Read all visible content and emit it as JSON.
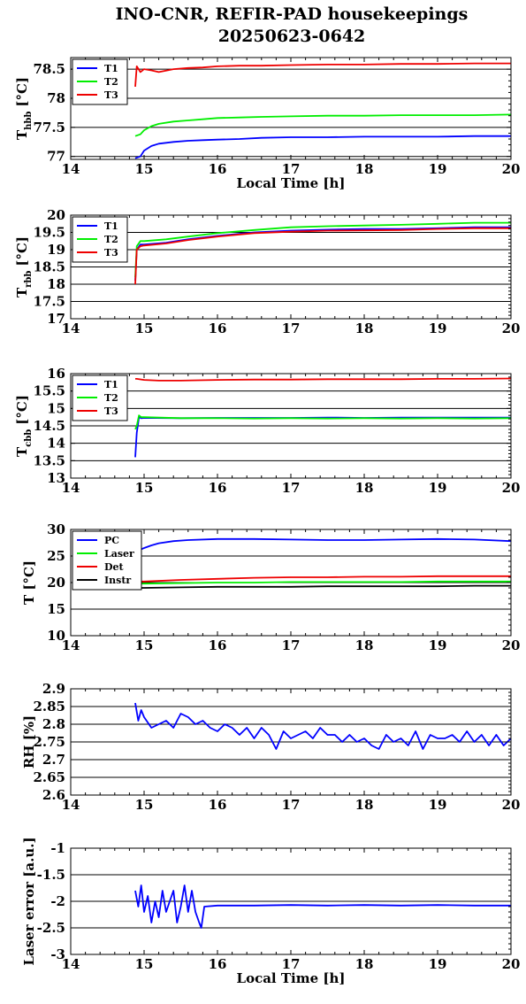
{
  "figure": {
    "title_line1": "INO-CNR, REFIR-PAD housekeepings",
    "title_line2": "20250623-0642"
  },
  "colors": {
    "blue": "#0000ff",
    "green": "#00ee00",
    "red": "#ee0000",
    "black": "#000000"
  },
  "chart_data": [
    {
      "type": "line",
      "ylabel_main": "T",
      "ylabel_sub": "hbb",
      "ylabel_unit": "[°C]",
      "xlabel": "Local Time [h]",
      "xlim": [
        14,
        20
      ],
      "ylim": [
        76.95,
        78.7
      ],
      "yticks": [
        77,
        77.5,
        78,
        78.5
      ],
      "ytick_labels": [
        "77",
        "77.5",
        "78",
        "78.5"
      ],
      "xticks": [
        14,
        15,
        16,
        17,
        18,
        19,
        20
      ],
      "xtick_labels": [
        "14",
        "15",
        "16",
        "17",
        "18",
        "19",
        "20"
      ],
      "grid": "horizontal",
      "legend_position": "top-left",
      "series": [
        {
          "name": "T1",
          "color": "#0000ff",
          "x": [
            14.88,
            14.95,
            15.0,
            15.1,
            15.2,
            15.4,
            15.6,
            15.8,
            16.0,
            16.3,
            16.6,
            17.0,
            17.5,
            18.0,
            18.5,
            19.0,
            19.5,
            20.0
          ],
          "y": [
            76.97,
            77.0,
            77.1,
            77.18,
            77.22,
            77.25,
            77.27,
            77.28,
            77.29,
            77.3,
            77.32,
            77.33,
            77.33,
            77.34,
            77.34,
            77.34,
            77.35,
            77.35
          ]
        },
        {
          "name": "T2",
          "color": "#00ee00",
          "x": [
            14.88,
            14.95,
            15.0,
            15.1,
            15.2,
            15.4,
            15.6,
            15.8,
            16.0,
            16.3,
            16.6,
            17.0,
            17.5,
            18.0,
            18.5,
            19.0,
            19.5,
            20.0
          ],
          "y": [
            77.35,
            77.38,
            77.45,
            77.52,
            77.56,
            77.6,
            77.62,
            77.64,
            77.66,
            77.67,
            77.68,
            77.69,
            77.7,
            77.7,
            77.71,
            77.71,
            77.71,
            77.72
          ]
        },
        {
          "name": "T3",
          "color": "#ee0000",
          "x": [
            14.88,
            14.9,
            14.95,
            15.0,
            15.1,
            15.2,
            15.4,
            15.6,
            15.8,
            16.0,
            16.3,
            16.6,
            17.0,
            17.5,
            18.0,
            18.5,
            19.0,
            19.5,
            20.0
          ],
          "y": [
            78.2,
            78.55,
            78.45,
            78.5,
            78.48,
            78.45,
            78.5,
            78.52,
            78.53,
            78.55,
            78.56,
            78.56,
            78.57,
            78.58,
            78.58,
            78.59,
            78.59,
            78.6,
            78.6
          ]
        }
      ]
    },
    {
      "type": "line",
      "ylabel_main": "T",
      "ylabel_sub": "rbb",
      "ylabel_unit": "[°C]",
      "xlim": [
        14,
        20
      ],
      "ylim": [
        17,
        20
      ],
      "yticks": [
        17,
        17.5,
        18,
        18.5,
        19,
        19.5,
        20
      ],
      "ytick_labels": [
        "17",
        "17.5",
        "18",
        "18.5",
        "19",
        "19.5",
        "20"
      ],
      "xticks": [
        14,
        15,
        16,
        17,
        18,
        19,
        20
      ],
      "xtick_labels": [
        "14",
        "15",
        "16",
        "17",
        "18",
        "19",
        "20"
      ],
      "grid": "horizontal",
      "legend_position": "top-left",
      "series": [
        {
          "name": "T1",
          "color": "#0000ff",
          "x": [
            14.88,
            14.9,
            14.95,
            15.0,
            15.3,
            15.6,
            16.0,
            16.5,
            17.0,
            17.5,
            18.0,
            18.5,
            19.0,
            19.5,
            20.0
          ],
          "y": [
            18.1,
            19.0,
            19.15,
            19.15,
            19.2,
            19.3,
            19.4,
            19.5,
            19.55,
            19.58,
            19.6,
            19.6,
            19.62,
            19.65,
            19.65
          ]
        },
        {
          "name": "T2",
          "color": "#00ee00",
          "x": [
            14.88,
            14.9,
            14.95,
            15.0,
            15.3,
            15.6,
            16.0,
            16.5,
            17.0,
            17.5,
            18.0,
            18.5,
            19.0,
            19.5,
            20.0
          ],
          "y": [
            18.2,
            19.1,
            19.25,
            19.25,
            19.3,
            19.38,
            19.48,
            19.57,
            19.65,
            19.68,
            19.7,
            19.72,
            19.75,
            19.78,
            19.78
          ]
        },
        {
          "name": "T3",
          "color": "#ee0000",
          "x": [
            14.88,
            14.9,
            14.95,
            15.0,
            15.3,
            15.6,
            16.0,
            16.5,
            17.0,
            17.5,
            18.0,
            18.5,
            19.0,
            19.5,
            20.0
          ],
          "y": [
            18.0,
            19.0,
            19.1,
            19.12,
            19.18,
            19.28,
            19.38,
            19.48,
            19.52,
            19.55,
            19.56,
            19.57,
            19.6,
            19.62,
            19.62
          ]
        }
      ]
    },
    {
      "type": "line",
      "ylabel_main": "T",
      "ylabel_sub": "cbb",
      "ylabel_unit": "[°C]",
      "xlim": [
        14,
        20
      ],
      "ylim": [
        13,
        16
      ],
      "yticks": [
        13,
        13.5,
        14,
        14.5,
        15,
        15.5,
        16
      ],
      "ytick_labels": [
        "13",
        "13.5",
        "14",
        "14.5",
        "15",
        "15.5",
        "16"
      ],
      "xticks": [
        14,
        15,
        16,
        17,
        18,
        19,
        20
      ],
      "xtick_labels": [
        "14",
        "15",
        "16",
        "17",
        "18",
        "19",
        "20"
      ],
      "grid": "horizontal",
      "legend_position": "top-left",
      "series": [
        {
          "name": "T1",
          "color": "#0000ff",
          "x": [
            14.88,
            14.9,
            14.93,
            14.96,
            15.0,
            15.5,
            16.0,
            16.5,
            17.0,
            17.5,
            18.0,
            18.5,
            19.0,
            19.5,
            20.0
          ],
          "y": [
            13.6,
            14.3,
            14.75,
            14.72,
            14.73,
            14.72,
            14.73,
            14.73,
            14.73,
            14.74,
            14.73,
            14.74,
            14.74,
            14.74,
            14.74
          ]
        },
        {
          "name": "T2",
          "color": "#00ee00",
          "x": [
            14.88,
            14.9,
            14.93,
            14.96,
            15.0,
            15.5,
            16.0,
            16.5,
            17.0,
            17.5,
            18.0,
            18.5,
            19.0,
            19.5,
            20.0
          ],
          "y": [
            14.4,
            14.5,
            14.8,
            14.75,
            14.75,
            14.72,
            14.72,
            14.71,
            14.72,
            14.71,
            14.72,
            14.71,
            14.72,
            14.71,
            14.72
          ]
        },
        {
          "name": "T3",
          "color": "#ee0000",
          "x": [
            14.88,
            14.9,
            15.0,
            15.2,
            15.5,
            16.0,
            16.5,
            17.0,
            17.5,
            18.0,
            18.5,
            19.0,
            19.5,
            20.0
          ],
          "y": [
            15.85,
            15.85,
            15.82,
            15.8,
            15.8,
            15.82,
            15.83,
            15.83,
            15.84,
            15.84,
            15.84,
            15.85,
            15.85,
            15.86
          ]
        }
      ]
    },
    {
      "type": "line",
      "ylabel_main": "T [°C]",
      "xlim": [
        14,
        20
      ],
      "ylim": [
        10,
        30
      ],
      "yticks": [
        10,
        15,
        20,
        25,
        30
      ],
      "ytick_labels": [
        "10",
        "15",
        "20",
        "25",
        "30"
      ],
      "xticks": [
        14,
        15,
        16,
        17,
        18,
        19,
        20
      ],
      "xtick_labels": [
        "14",
        "15",
        "16",
        "17",
        "18",
        "19",
        "20"
      ],
      "grid": "horizontal",
      "legend_position": "top-left",
      "series": [
        {
          "name": "PC",
          "color": "#0000ff",
          "x": [
            14.88,
            15.0,
            15.1,
            15.2,
            15.4,
            15.6,
            16.0,
            16.5,
            17.0,
            17.5,
            18.0,
            18.5,
            19.0,
            19.5,
            20.0
          ],
          "y": [
            25.8,
            26.5,
            27.0,
            27.4,
            27.8,
            28.0,
            28.2,
            28.2,
            28.1,
            28.0,
            28.0,
            28.1,
            28.2,
            28.1,
            27.8
          ]
        },
        {
          "name": "Laser",
          "color": "#00ee00",
          "x": [
            14.88,
            15.0,
            15.5,
            16.0,
            16.5,
            17.0,
            17.5,
            18.0,
            18.5,
            19.0,
            19.5,
            20.0
          ],
          "y": [
            19.8,
            19.8,
            19.9,
            20.0,
            20.0,
            20.1,
            20.1,
            20.1,
            20.1,
            20.2,
            20.2,
            20.2
          ]
        },
        {
          "name": "Det",
          "color": "#ee0000",
          "x": [
            14.88,
            15.0,
            15.5,
            16.0,
            16.5,
            17.0,
            17.5,
            18.0,
            18.5,
            19.0,
            19.5,
            20.0
          ],
          "y": [
            20.2,
            20.2,
            20.5,
            20.7,
            20.9,
            21.0,
            21.0,
            21.1,
            21.1,
            21.2,
            21.2,
            21.2
          ]
        },
        {
          "name": "Instr",
          "color": "#000000",
          "x": [
            14.88,
            15.0,
            15.5,
            16.0,
            16.5,
            17.0,
            17.5,
            18.0,
            18.5,
            19.0,
            19.5,
            20.0
          ],
          "y": [
            19.0,
            19.0,
            19.1,
            19.2,
            19.2,
            19.2,
            19.3,
            19.3,
            19.3,
            19.3,
            19.4,
            19.4
          ]
        }
      ]
    },
    {
      "type": "line",
      "ylabel_main": "RH [%]",
      "xlim": [
        14,
        20
      ],
      "ylim": [
        2.6,
        2.9
      ],
      "yticks": [
        2.6,
        2.65,
        2.7,
        2.75,
        2.8,
        2.85,
        2.9
      ],
      "ytick_labels": [
        "2.6",
        "2.65",
        "2.7",
        "2.75",
        "2.8",
        "2.85",
        "2.9"
      ],
      "xticks": [
        14,
        15,
        16,
        17,
        18,
        19,
        20
      ],
      "xtick_labels": [
        "14",
        "15",
        "16",
        "17",
        "18",
        "19",
        "20"
      ],
      "grid": "horizontal",
      "series": [
        {
          "name": "",
          "color": "#0000ff",
          "x": [
            14.88,
            14.92,
            14.96,
            15.0,
            15.1,
            15.2,
            15.3,
            15.4,
            15.5,
            15.6,
            15.7,
            15.8,
            15.9,
            16.0,
            16.1,
            16.2,
            16.3,
            16.4,
            16.5,
            16.6,
            16.7,
            16.8,
            16.9,
            17.0,
            17.1,
            17.2,
            17.3,
            17.4,
            17.5,
            17.6,
            17.7,
            17.8,
            17.9,
            18.0,
            18.1,
            18.2,
            18.3,
            18.4,
            18.5,
            18.6,
            18.7,
            18.8,
            18.9,
            19.0,
            19.1,
            19.2,
            19.3,
            19.4,
            19.5,
            19.6,
            19.7,
            19.8,
            19.9,
            20.0
          ],
          "y": [
            2.86,
            2.81,
            2.84,
            2.82,
            2.79,
            2.8,
            2.81,
            2.79,
            2.83,
            2.82,
            2.8,
            2.81,
            2.79,
            2.78,
            2.8,
            2.79,
            2.77,
            2.79,
            2.76,
            2.79,
            2.77,
            2.73,
            2.78,
            2.76,
            2.77,
            2.78,
            2.76,
            2.79,
            2.77,
            2.77,
            2.75,
            2.77,
            2.75,
            2.76,
            2.74,
            2.73,
            2.77,
            2.75,
            2.76,
            2.74,
            2.78,
            2.73,
            2.77,
            2.76,
            2.76,
            2.77,
            2.75,
            2.78,
            2.75,
            2.77,
            2.74,
            2.77,
            2.74,
            2.76
          ]
        }
      ]
    },
    {
      "type": "line",
      "ylabel_main": "Laser error [a.u.]",
      "xlabel": "Local Time [h]",
      "xlim": [
        14,
        20
      ],
      "ylim": [
        -3,
        -1
      ],
      "yticks": [
        -3,
        -2.5,
        -2,
        -1.5,
        -1
      ],
      "ytick_labels": [
        "-3",
        "-2.5",
        "-2",
        "-1.5",
        "-1"
      ],
      "xticks": [
        14,
        15,
        16,
        17,
        18,
        19,
        20
      ],
      "xtick_labels": [
        "14",
        "15",
        "16",
        "17",
        "18",
        "19",
        "20"
      ],
      "grid": "horizontal",
      "series": [
        {
          "name": "",
          "color": "#0000ff",
          "x": [
            14.88,
            14.92,
            14.96,
            15.0,
            15.05,
            15.1,
            15.15,
            15.2,
            15.25,
            15.3,
            15.35,
            15.4,
            15.45,
            15.5,
            15.55,
            15.6,
            15.65,
            15.7,
            15.75,
            15.78,
            15.82,
            16.0,
            16.5,
            17.0,
            17.5,
            18.0,
            18.5,
            19.0,
            19.5,
            20.0
          ],
          "y": [
            -1.8,
            -2.1,
            -1.7,
            -2.2,
            -1.9,
            -2.4,
            -2.0,
            -2.3,
            -1.8,
            -2.2,
            -2.0,
            -1.8,
            -2.4,
            -2.1,
            -1.7,
            -2.2,
            -1.8,
            -2.2,
            -2.4,
            -2.5,
            -2.1,
            -2.08,
            -2.08,
            -2.07,
            -2.08,
            -2.07,
            -2.08,
            -2.07,
            -2.08,
            -2.08
          ]
        }
      ]
    }
  ]
}
